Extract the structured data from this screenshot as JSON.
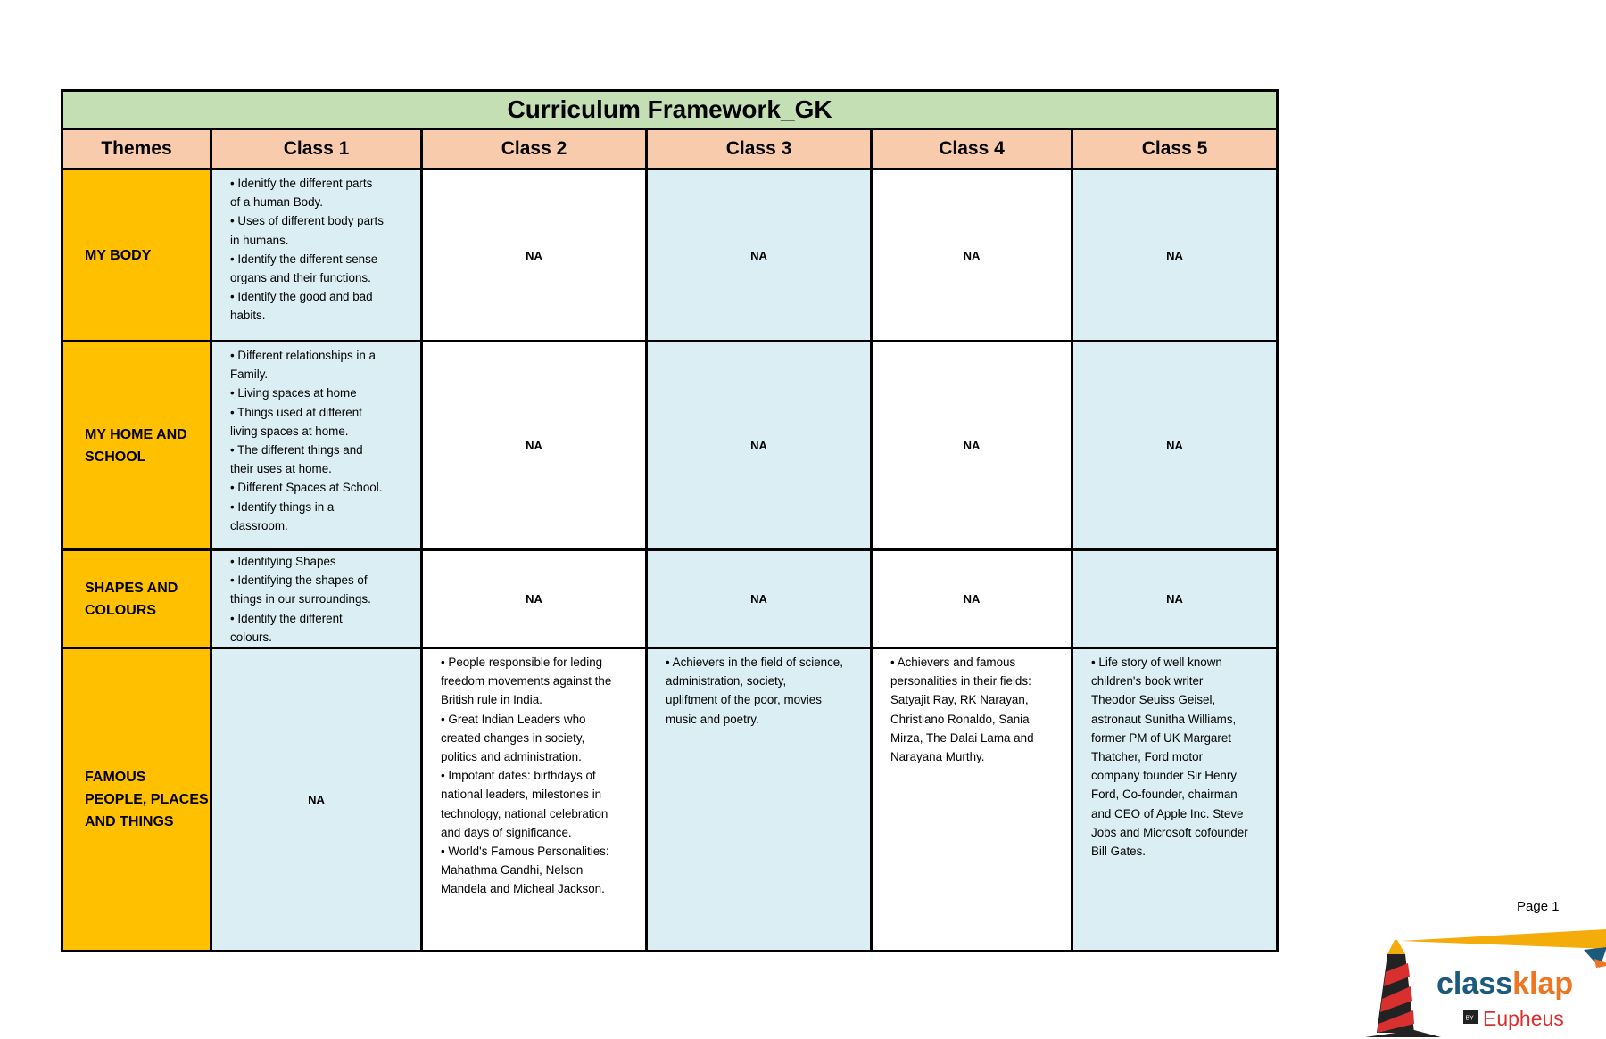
{
  "title": "Curriculum Framework_GK",
  "headers": [
    "Themes",
    "Class 1",
    "Class 2",
    "Class 3",
    "Class 4",
    "Class 5"
  ],
  "rows": [
    {
      "theme": "MY BODY",
      "cells": [
        "  • Idenitfy the different parts\nof a human Body.\n  • Uses of different body parts\nin humans.\n  • Identify the different sense\norgans and their functions.\n  • Identify the good and bad\nhabits.",
        "NA",
        "NA",
        "NA",
        "NA"
      ]
    },
    {
      "theme": "MY HOME AND\nSCHOOL",
      "cells": [
        "  • Different relationships in a\nFamily.\n  • Living spaces at home\n  • Things used at different\nliving spaces at home.\n  • The different things and\ntheir uses at home.\n  • Different Spaces at School.\n  • Identify things in a\nclassroom.",
        "NA",
        "NA",
        "NA",
        "NA"
      ]
    },
    {
      "theme": "SHAPES AND\nCOLOURS",
      "cells": [
        " • Identifying Shapes\n • Identifying the shapes of\nthings in our surroundings.\n • Identify the different\ncolours.",
        "NA",
        "NA",
        "NA",
        "NA"
      ]
    },
    {
      "theme": "FAMOUS\nPEOPLE, PLACES\nAND THINGS",
      "cells": [
        "NA",
        "• People responsible for leding\nfreedom movements against the\nBritish rule in India.\n• Great Indian Leaders who\ncreated changes in society,\npolitics and administration.\n• Impotant dates: birthdays of\nnational leaders, milestones in\ntechnology, national celebration\nand days of significance.\n• World's Famous Personalities:\nMahathma Gandhi, Nelson\nMandela and Micheal Jackson.",
        "• Achievers in the field of science,\nadministration, society,\nupliftment of the poor, movies\nmusic and poetry.",
        "• Achievers and famous\npersonalities in their fields:\nSatyajit Ray, RK Narayan,\nChristiano Ronaldo, Sania\nMirza, The Dalai Lama and\nNarayana Murthy.",
        "• Life story of well known\nchildren's book writer\nTheodor Seuiss Geisel,\nastronaut Sunitha Williams,\nformer PM of UK Margaret\nThatcher, Ford motor\ncompany founder Sir Henry\nFord, Co-founder, chairman\nand CEO of Apple Inc. Steve\nJobs and Microsoft cofounder\nBill Gates."
      ]
    }
  ],
  "footer": {
    "page": "Page 1",
    "logo": {
      "brand_a": "class",
      "brand_b": "klap",
      "by": "BY",
      "publisher": "Eupheus"
    }
  },
  "colors": {
    "title_bg": "#C4DFB3",
    "header_bg": "#F8CBAD",
    "theme_bg": "#FFC000",
    "alt_col_bg": "#DAEEF3"
  }
}
